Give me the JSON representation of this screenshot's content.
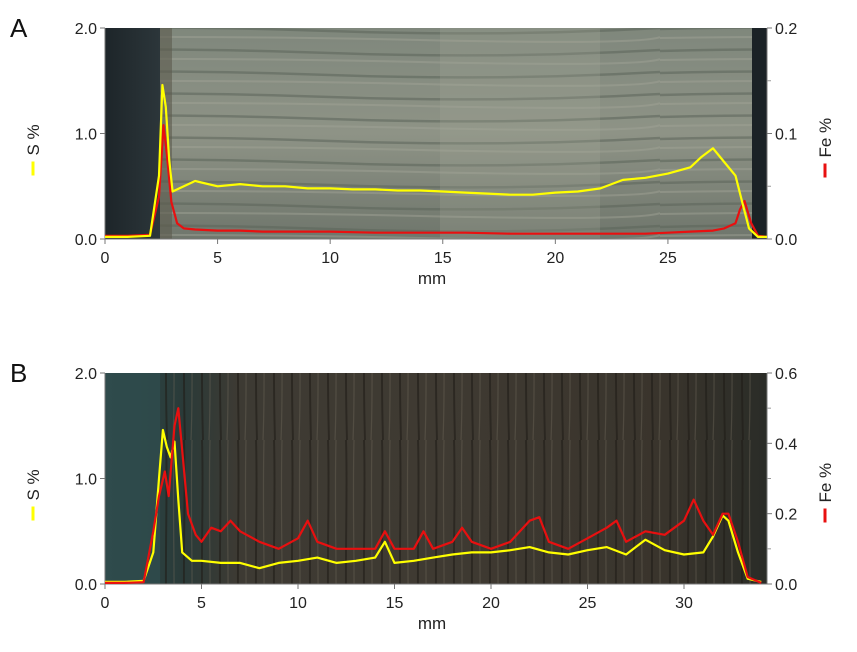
{
  "figure": {
    "panel_letters": [
      "A",
      "B"
    ]
  },
  "chart_data": [
    {
      "type": "line",
      "panel": "A",
      "xlabel": "mm",
      "x_ticks": [
        0,
        5,
        10,
        15,
        20,
        25
      ],
      "xlim": [
        0,
        29.4
      ],
      "y_left": {
        "label": "S %",
        "ticks": [
          "0.0",
          "1.0",
          "2.0"
        ],
        "lim": [
          0,
          2.0
        ]
      },
      "y_right": {
        "label": "Fe %",
        "ticks": [
          "0.0",
          "0.1",
          "0.2"
        ],
        "lim": [
          0,
          0.2
        ]
      },
      "background": "core sample photograph (light grey sediment with horizontal laminations; dark edges)",
      "series": [
        {
          "name": "S %",
          "axis": "left",
          "color": "#ffff00",
          "x": [
            0,
            1,
            2,
            2.4,
            2.55,
            2.7,
            2.85,
            3.0,
            3.3,
            4,
            5,
            6,
            7,
            8,
            9,
            10,
            11,
            12,
            13,
            14,
            15,
            16,
            17,
            18,
            19,
            20,
            21,
            22,
            22.5,
            23,
            24,
            25,
            26,
            26.5,
            27,
            27.5,
            28,
            28.3,
            28.6,
            29,
            29.4
          ],
          "y": [
            0.02,
            0.02,
            0.03,
            0.6,
            1.46,
            1.25,
            0.75,
            0.45,
            0.48,
            0.55,
            0.5,
            0.52,
            0.5,
            0.5,
            0.48,
            0.48,
            0.47,
            0.47,
            0.46,
            0.46,
            0.45,
            0.44,
            0.43,
            0.42,
            0.42,
            0.44,
            0.45,
            0.48,
            0.52,
            0.56,
            0.58,
            0.62,
            0.68,
            0.78,
            0.86,
            0.73,
            0.6,
            0.35,
            0.1,
            0.02,
            0.02
          ]
        },
        {
          "name": "Fe %",
          "axis": "right",
          "color": "#e81010",
          "x": [
            0,
            1,
            2,
            2.4,
            2.6,
            2.75,
            2.95,
            3.2,
            3.5,
            4,
            5,
            6,
            7,
            8,
            10,
            12,
            14,
            16,
            18,
            20,
            22,
            24,
            25,
            26,
            27,
            27.5,
            28,
            28.2,
            28.4,
            28.7,
            29,
            29.4
          ],
          "y": [
            0.003,
            0.003,
            0.004,
            0.04,
            0.108,
            0.08,
            0.035,
            0.015,
            0.01,
            0.009,
            0.008,
            0.008,
            0.007,
            0.007,
            0.007,
            0.006,
            0.006,
            0.006,
            0.005,
            0.005,
            0.005,
            0.005,
            0.006,
            0.007,
            0.008,
            0.01,
            0.015,
            0.028,
            0.036,
            0.015,
            0.003,
            0.002
          ]
        }
      ]
    },
    {
      "type": "line",
      "panel": "B",
      "xlabel": "mm",
      "x_ticks": [
        0,
        5,
        10,
        15,
        20,
        25,
        30
      ],
      "xlim": [
        0,
        34.3
      ],
      "y_left": {
        "label": "S %",
        "ticks": [
          "0.0",
          "1.0",
          "2.0"
        ],
        "lim": [
          0,
          2.0
        ]
      },
      "y_right": {
        "label": "Fe %",
        "ticks": [
          "0.0",
          "0.2",
          "0.4",
          "0.6"
        ],
        "lim": [
          0,
          0.6
        ]
      },
      "background": "core sample photograph (dark wood with vertical grain)",
      "series": [
        {
          "name": "S %",
          "axis": "left",
          "color": "#ffff00",
          "x": [
            0,
            1,
            2,
            2.5,
            2.8,
            3.0,
            3.2,
            3.4,
            3.6,
            3.8,
            4.0,
            4.5,
            5,
            6,
            7,
            8,
            9,
            10,
            11,
            12,
            13,
            14,
            14.5,
            15,
            16,
            17,
            18,
            19,
            20,
            21,
            22,
            23,
            24,
            25,
            26,
            27,
            28,
            29,
            30,
            31,
            31.5,
            32,
            32.3,
            32.8,
            33.3,
            34
          ],
          "y": [
            0.02,
            0.02,
            0.03,
            0.3,
            1.0,
            1.46,
            1.3,
            1.2,
            1.35,
            0.8,
            0.3,
            0.22,
            0.22,
            0.2,
            0.2,
            0.15,
            0.2,
            0.22,
            0.25,
            0.2,
            0.22,
            0.25,
            0.4,
            0.2,
            0.22,
            0.25,
            0.28,
            0.3,
            0.3,
            0.32,
            0.35,
            0.3,
            0.28,
            0.32,
            0.35,
            0.28,
            0.42,
            0.32,
            0.28,
            0.3,
            0.45,
            0.65,
            0.6,
            0.3,
            0.05,
            0.02
          ]
        },
        {
          "name": "Fe %",
          "axis": "right",
          "color": "#e81010",
          "x": [
            0,
            1,
            2,
            2.5,
            2.8,
            3.1,
            3.3,
            3.6,
            3.8,
            4.0,
            4.3,
            4.7,
            5,
            5.5,
            6,
            6.5,
            7,
            8,
            9,
            10,
            10.5,
            11,
            12,
            13,
            14,
            14.5,
            15,
            16,
            16.5,
            17,
            18,
            18.5,
            19,
            20,
            21,
            22,
            22.5,
            23,
            24,
            25,
            26,
            26.5,
            27,
            28,
            29,
            30,
            30.5,
            31,
            31.5,
            32,
            32.3,
            32.8,
            33.3,
            34
          ],
          "y": [
            0.003,
            0.003,
            0.005,
            0.15,
            0.25,
            0.32,
            0.25,
            0.45,
            0.5,
            0.38,
            0.2,
            0.14,
            0.12,
            0.16,
            0.15,
            0.18,
            0.15,
            0.12,
            0.1,
            0.13,
            0.18,
            0.12,
            0.1,
            0.1,
            0.1,
            0.15,
            0.1,
            0.1,
            0.15,
            0.1,
            0.12,
            0.16,
            0.12,
            0.1,
            0.12,
            0.18,
            0.19,
            0.12,
            0.1,
            0.13,
            0.16,
            0.18,
            0.12,
            0.15,
            0.14,
            0.18,
            0.24,
            0.18,
            0.14,
            0.2,
            0.2,
            0.12,
            0.02,
            0.003
          ]
        }
      ]
    }
  ]
}
